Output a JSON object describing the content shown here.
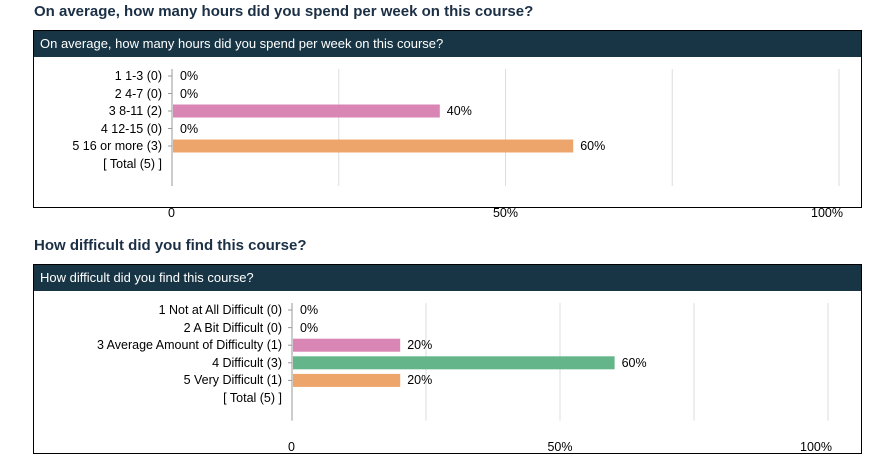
{
  "sections": [
    {
      "title": "On average, how many hours did you spend per week on this course?",
      "header": "On average, how many hours did you spend per week on this course?"
    },
    {
      "title": "How difficult did you find this course?",
      "header": "How difficult did you find this course?"
    }
  ],
  "colors": {
    "pink": "#d986b4",
    "orange": "#eda56c",
    "green": "#64b58a",
    "header_bg": "#173545",
    "grid": "#dddddd"
  },
  "chart_data": [
    {
      "type": "bar",
      "orientation": "horizontal",
      "categories": [
        "1 1-3 (0)",
        "2 4-7 (0)",
        "3 8-11 (2)",
        "4 12-15 (0)",
        "5 16 or more (3)"
      ],
      "values": [
        0,
        0,
        40,
        0,
        60
      ],
      "value_labels": [
        "0%",
        "0%",
        "40%",
        "0%",
        "60%"
      ],
      "bar_colors": [
        "#d986b4",
        "#d986b4",
        "#d986b4",
        "#d986b4",
        "#eda56c"
      ],
      "total_label": "[ Total (5) ]",
      "xlim": [
        0,
        100
      ],
      "ticks": [
        0,
        50,
        100
      ],
      "tick_labels": [
        "0",
        "50%",
        "100%"
      ],
      "grid": true
    },
    {
      "type": "bar",
      "orientation": "horizontal",
      "categories": [
        "1 Not at All Difficult (0)",
        "2 A Bit Difficult (0)",
        "3 Average Amount of Difficulty (1)",
        "4 Difficult (3)",
        "5 Very Difficult (1)"
      ],
      "values": [
        0,
        0,
        20,
        60,
        20
      ],
      "value_labels": [
        "0%",
        "0%",
        "20%",
        "60%",
        "20%"
      ],
      "bar_colors": [
        "#d986b4",
        "#d986b4",
        "#d986b4",
        "#64b58a",
        "#eda56c"
      ],
      "total_label": "[ Total (5) ]",
      "xlim": [
        0,
        100
      ],
      "ticks": [
        0,
        50,
        100
      ],
      "tick_labels": [
        "0",
        "50%",
        "100%"
      ],
      "grid": true
    }
  ]
}
